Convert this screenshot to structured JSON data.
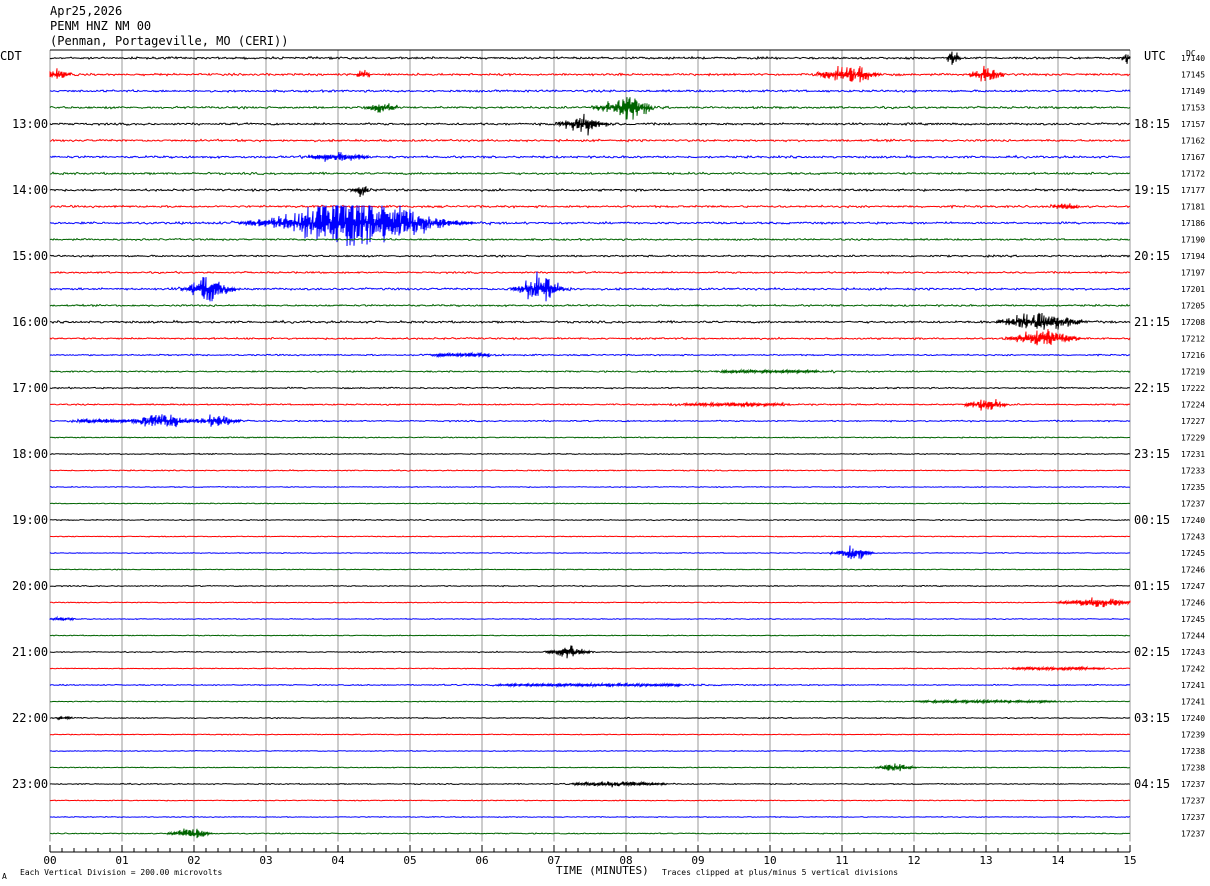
{
  "header": {
    "date": "Apr25,2026",
    "station": "PENM HNZ NM 00",
    "location": "(Penman, Portageville, MO (CERI))"
  },
  "labels": {
    "left_tz": "CDT",
    "right_tz": "UTC",
    "dc_label": "DC",
    "xlabel": "TIME (MINUTES)",
    "scale_note": "Each Vertical Division =  200.00 microvolts",
    "clip_note": "Traces clipped at plus/minus 5 vertical divisions",
    "corner_mark": "A"
  },
  "colors": {
    "trace_cycle": [
      "#000000",
      "#ff0000",
      "#0000ff",
      "#006400"
    ],
    "grid": "#808080",
    "text": "#000000"
  },
  "chart_data": {
    "type": "line",
    "title": "PENM HNZ NM 00",
    "xlabel": "TIME (MINUTES)",
    "xlim": [
      0,
      15
    ],
    "x_ticks": [
      "00",
      "01",
      "02",
      "03",
      "04",
      "05",
      "06",
      "07",
      "08",
      "09",
      "10",
      "11",
      "12",
      "13",
      "14",
      "15"
    ],
    "rows": 48,
    "left_time_labels": [
      {
        "row": 4,
        "text": "13:00"
      },
      {
        "row": 8,
        "text": "14:00"
      },
      {
        "row": 12,
        "text": "15:00"
      },
      {
        "row": 16,
        "text": "16:00"
      },
      {
        "row": 20,
        "text": "17:00"
      },
      {
        "row": 24,
        "text": "18:00"
      },
      {
        "row": 28,
        "text": "19:00"
      },
      {
        "row": 32,
        "text": "20:00"
      },
      {
        "row": 36,
        "text": "21:00"
      },
      {
        "row": 40,
        "text": "22:00"
      },
      {
        "row": 44,
        "text": "23:00"
      }
    ],
    "right_time_labels": [
      {
        "row": 4,
        "text": "18:15"
      },
      {
        "row": 8,
        "text": "19:15"
      },
      {
        "row": 12,
        "text": "20:15"
      },
      {
        "row": 16,
        "text": "21:15"
      },
      {
        "row": 20,
        "text": "22:15"
      },
      {
        "row": 24,
        "text": "23:15"
      },
      {
        "row": 28,
        "text": "00:15"
      },
      {
        "row": 32,
        "text": "01:15"
      },
      {
        "row": 36,
        "text": "02:15"
      },
      {
        "row": 40,
        "text": "03:15"
      },
      {
        "row": 44,
        "text": "04:15"
      }
    ],
    "dc_offsets": [
      "17140",
      "17145",
      "17149",
      "17153",
      "17157",
      "17162",
      "17167",
      "17172",
      "17177",
      "17181",
      "17186",
      "17190",
      "17194",
      "17197",
      "17201",
      "17205",
      "17208",
      "17212",
      "17216",
      "17219",
      "17222",
      "17224",
      "17227",
      "17229",
      "17231",
      "17233",
      "17235",
      "17237",
      "17240",
      "17243",
      "17245",
      "17246",
      "17247",
      "17246",
      "17245",
      "17244",
      "17243",
      "17242",
      "17241",
      "17241",
      "17240",
      "17239",
      "17238",
      "17238",
      "17237",
      "17237",
      "17237",
      "17237"
    ],
    "noise_amplitude_div": [
      0.3,
      0.3,
      0.3,
      0.3,
      0.3,
      0.3,
      0.3,
      0.3,
      0.3,
      0.3,
      0.3,
      0.25,
      0.25,
      0.25,
      0.3,
      0.25,
      0.3,
      0.25,
      0.2,
      0.2,
      0.2,
      0.2,
      0.2,
      0.15,
      0.15,
      0.15,
      0.12,
      0.12,
      0.15,
      0.12,
      0.12,
      0.12,
      0.15,
      0.12,
      0.12,
      0.12,
      0.15,
      0.12,
      0.15,
      0.12,
      0.15,
      0.12,
      0.12,
      0.12,
      0.15,
      0.12,
      0.12,
      0.15
    ],
    "events": [
      {
        "row": 0,
        "minute": 12.55,
        "amp_div": 1.2,
        "dur_min": 0.15
      },
      {
        "row": 0,
        "minute": 14.95,
        "amp_div": 1.1,
        "dur_min": 0.1
      },
      {
        "row": 1,
        "minute": 0.1,
        "amp_div": 0.8,
        "dur_min": 0.3
      },
      {
        "row": 1,
        "minute": 4.35,
        "amp_div": 0.8,
        "dur_min": 0.15
      },
      {
        "row": 1,
        "minute": 11.1,
        "amp_div": 1.6,
        "dur_min": 0.6
      },
      {
        "row": 1,
        "minute": 13.0,
        "amp_div": 1.3,
        "dur_min": 0.35
      },
      {
        "row": 3,
        "minute": 4.6,
        "amp_div": 0.8,
        "dur_min": 0.35
      },
      {
        "row": 3,
        "minute": 7.8,
        "amp_div": 1.2,
        "dur_min": 0.4
      },
      {
        "row": 3,
        "minute": 8.1,
        "amp_div": 2.2,
        "dur_min": 0.35
      },
      {
        "row": 4,
        "minute": 7.4,
        "amp_div": 1.5,
        "dur_min": 0.5
      },
      {
        "row": 9,
        "minute": 14.1,
        "amp_div": 0.4,
        "dur_min": 0.4
      },
      {
        "row": 8,
        "minute": 4.3,
        "amp_div": 1.0,
        "dur_min": 0.2
      },
      {
        "row": 6,
        "minute": 4.0,
        "amp_div": 0.8,
        "dur_min": 0.7
      },
      {
        "row": 10,
        "minute": 4.25,
        "amp_div": 5.0,
        "dur_min": 1.8
      },
      {
        "row": 14,
        "minute": 2.2,
        "amp_div": 2.0,
        "dur_min": 0.5
      },
      {
        "row": 14,
        "minute": 6.8,
        "amp_div": 2.4,
        "dur_min": 0.5
      },
      {
        "row": 16,
        "minute": 13.75,
        "amp_div": 1.8,
        "dur_min": 0.8
      },
      {
        "row": 17,
        "minute": 13.8,
        "amp_div": 1.4,
        "dur_min": 0.7
      },
      {
        "row": 18,
        "minute": 5.7,
        "amp_div": 0.25,
        "dur_min": 1.0
      },
      {
        "row": 19,
        "minute": 10.0,
        "amp_div": 0.2,
        "dur_min": 2.0
      },
      {
        "row": 21,
        "minute": 13.0,
        "amp_div": 1.3,
        "dur_min": 0.4
      },
      {
        "row": 21,
        "minute": 9.5,
        "amp_div": 0.3,
        "dur_min": 1.5
      },
      {
        "row": 22,
        "minute": 1.55,
        "amp_div": 1.5,
        "dur_min": 0.6
      },
      {
        "row": 22,
        "minute": 2.35,
        "amp_div": 1.2,
        "dur_min": 0.4
      },
      {
        "row": 22,
        "minute": 0.7,
        "amp_div": 0.35,
        "dur_min": 0.6
      },
      {
        "row": 30,
        "minute": 11.15,
        "amp_div": 1.6,
        "dur_min": 0.35
      },
      {
        "row": 33,
        "minute": 14.55,
        "amp_div": 1.0,
        "dur_min": 0.7
      },
      {
        "row": 34,
        "minute": 0.15,
        "amp_div": 0.3,
        "dur_min": 0.3
      },
      {
        "row": 36,
        "minute": 7.2,
        "amp_div": 1.1,
        "dur_min": 0.4
      },
      {
        "row": 37,
        "minute": 14.0,
        "amp_div": 0.25,
        "dur_min": 1.2
      },
      {
        "row": 38,
        "minute": 7.5,
        "amp_div": 0.2,
        "dur_min": 3.0
      },
      {
        "row": 39,
        "minute": 13.0,
        "amp_div": 0.2,
        "dur_min": 2.0
      },
      {
        "row": 40,
        "minute": 0.2,
        "amp_div": 0.3,
        "dur_min": 0.2
      },
      {
        "row": 43,
        "minute": 11.75,
        "amp_div": 1.0,
        "dur_min": 0.35
      },
      {
        "row": 44,
        "minute": 7.9,
        "amp_div": 0.5,
        "dur_min": 1.0
      },
      {
        "row": 47,
        "minute": 1.95,
        "amp_div": 1.1,
        "dur_min": 0.4
      }
    ],
    "grid": true
  }
}
